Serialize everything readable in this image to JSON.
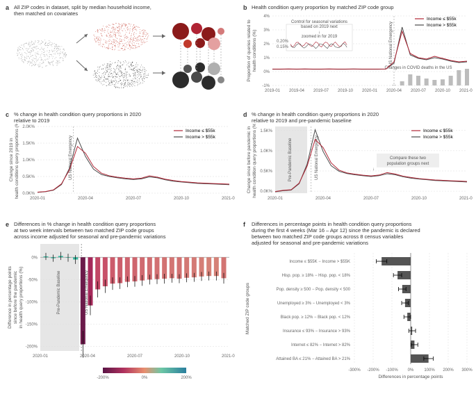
{
  "colors": {
    "low_income": "#b02434",
    "high_income": "#4a4a4a",
    "grid": "#dddddd",
    "baseline_band": "#e6e6e6",
    "bar_fill": "#555555",
    "map_red": "#c0392b",
    "map_dark": "#2c2c2c",
    "map_gray": "#888888"
  },
  "panel_a": {
    "letter": "a",
    "title": "All ZIP codes in dataset, split by median household income,\nthen matched on covariates"
  },
  "panel_b": {
    "letter": "b",
    "title": "Health condition query proportion by matched ZIP code group",
    "ylabel": "Proportion of queries related to\nhealth conditions (%)",
    "legend_low": "Income ≤ $55k",
    "legend_high": "Income > $55k",
    "inset_label": "Control for seasonal variations\nbased on 2019 next",
    "inset_sub": "zoomed in for 2019",
    "inset_ticks": [
      "0.15%",
      "0.20%"
    ],
    "annot_emerg": "US National Emergency",
    "annot_deaths": "Changes in COVID deaths in the US",
    "xticks": [
      "2019-01",
      "2019-04",
      "2019-07",
      "2019-10",
      "2020-01",
      "2020-04",
      "2020-07",
      "2020-10",
      "2021-01"
    ],
    "yticks": [
      "-1%",
      "0%",
      "1%",
      "2%",
      "3%",
      "4%"
    ],
    "series_low": [
      0.18,
      0.18,
      0.19,
      0.18,
      0.19,
      0.18,
      0.18,
      0.19,
      0.18,
      0.18,
      0.19,
      0.18,
      0.18,
      0.18,
      0.19,
      0.7,
      2.9,
      1.3,
      1.0,
      0.9,
      1.1,
      0.95,
      0.8,
      0.7,
      0.75
    ],
    "series_high": [
      0.17,
      0.17,
      0.18,
      0.17,
      0.18,
      0.17,
      0.17,
      0.18,
      0.17,
      0.17,
      0.18,
      0.17,
      0.17,
      0.17,
      0.18,
      0.6,
      3.2,
      1.2,
      0.95,
      0.85,
      1.0,
      0.9,
      0.75,
      0.65,
      0.7
    ],
    "deaths": [
      0,
      0,
      0,
      0,
      0,
      0,
      0,
      0,
      0,
      0,
      0,
      0,
      0,
      0,
      0,
      0.02,
      0.15,
      0.4,
      0.35,
      0.25,
      0.2,
      0.22,
      0.35,
      0.55,
      0.6
    ]
  },
  "panel_c": {
    "letter": "c",
    "title": "% change in health condition query proportions in 2020\nrelative to 2019",
    "ylabel": "Change since 2019 in\nhealth conditions query proportions (%)",
    "annot_emerg": "US National Emergency",
    "xticks": [
      "2020-01",
      "2020-04",
      "2020-07",
      "2020-10",
      "2021-01"
    ],
    "yticks": [
      "0.0K%",
      "0.5K%",
      "1.0K%",
      "1.5K%",
      "2.0K%"
    ],
    "series_low": [
      30,
      50,
      100,
      280,
      700,
      1400,
      1200,
      800,
      600,
      520,
      480,
      450,
      430,
      450,
      520,
      480,
      420,
      380,
      350,
      330,
      310,
      300,
      290,
      280,
      270
    ],
    "series_high": [
      25,
      45,
      90,
      260,
      750,
      1650,
      1100,
      720,
      560,
      500,
      460,
      430,
      410,
      430,
      490,
      460,
      400,
      360,
      335,
      315,
      295,
      285,
      275,
      265,
      255
    ]
  },
  "panel_d": {
    "letter": "d",
    "title": "% change in health condition query proportions in 2020\nrelative to 2019 and pre-pandemic baseline",
    "ylabel": "Change since before pandemic in\nhealth condition query proportions (%)",
    "annot_baseline": "Pre-Pandemic Baseline",
    "annot_emerg": "US National Emergency",
    "annot_compare": "Compare these two\npopulation groups next",
    "xticks": [
      "2020-01",
      "2020-04",
      "2020-07",
      "2020-10",
      "2021-01"
    ],
    "yticks": [
      "0.0K%",
      "0.5K%",
      "1.0K%",
      "1.5K%"
    ],
    "series_low": [
      -10,
      20,
      35,
      200,
      620,
      1280,
      1080,
      700,
      520,
      450,
      420,
      395,
      378,
      398,
      460,
      425,
      372,
      338,
      312,
      294,
      277,
      268,
      258,
      250,
      241
    ],
    "series_high": [
      -15,
      12,
      28,
      185,
      670,
      1520,
      980,
      630,
      490,
      435,
      405,
      382,
      362,
      383,
      432,
      408,
      355,
      322,
      300,
      282,
      264,
      255,
      246,
      237,
      228
    ]
  },
  "panel_e": {
    "letter": "e",
    "title": "Differences in % change in health condition query proportions\nat two week intervals between two matched ZIP code groups\nacross income adjusted for seasonal and pre-pandemic variations",
    "ylabel": "Difference in percentage points\nsince before the pandemic\nin health query proportions (%)",
    "annot_baseline": "Pre-Pandemic Baseline",
    "annot_emerg": "US National Emergency",
    "xticks": [
      "2020-01",
      "2020-04",
      "2020-07",
      "2020-10",
      "2021-01"
    ],
    "yticks": [
      "-200%",
      "-150%",
      "-100%",
      "-50%",
      "0%"
    ],
    "colorbar_ticks": [
      "-200%",
      "0%",
      "200%"
    ],
    "bars": [
      {
        "x": 0,
        "v": 2,
        "err": 8,
        "c": "#34b39a"
      },
      {
        "x": 1,
        "v": -2,
        "err": 8,
        "c": "#34b39a"
      },
      {
        "x": 2,
        "v": 3,
        "err": 9,
        "c": "#3cb8a0"
      },
      {
        "x": 3,
        "v": -1,
        "err": 9,
        "c": "#34b39a"
      },
      {
        "x": 4,
        "v": -5,
        "err": 10,
        "c": "#34b39a"
      },
      {
        "x": 5,
        "v": -195,
        "err": 30,
        "c": "#6b1a4a"
      },
      {
        "x": 6,
        "v": -108,
        "err": 22,
        "c": "#a5285a"
      },
      {
        "x": 7,
        "v": -72,
        "err": 18,
        "c": "#c24766"
      },
      {
        "x": 8,
        "v": -65,
        "err": 15,
        "c": "#c85069"
      },
      {
        "x": 9,
        "v": -59,
        "err": 14,
        "c": "#cc5b6b"
      },
      {
        "x": 10,
        "v": -58,
        "err": 13,
        "c": "#cc5d6b"
      },
      {
        "x": 11,
        "v": -55,
        "err": 12,
        "c": "#cf636e"
      },
      {
        "x": 12,
        "v": -54,
        "err": 12,
        "c": "#cf656e"
      },
      {
        "x": 13,
        "v": -52,
        "err": 12,
        "c": "#d06a70"
      },
      {
        "x": 14,
        "v": -50,
        "err": 11,
        "c": "#d16d71"
      },
      {
        "x": 15,
        "v": -49,
        "err": 11,
        "c": "#d27072"
      },
      {
        "x": 16,
        "v": -48,
        "err": 11,
        "c": "#d27272"
      },
      {
        "x": 17,
        "v": -47,
        "err": 10,
        "c": "#d37573"
      },
      {
        "x": 18,
        "v": -48,
        "err": 10,
        "c": "#d27272"
      },
      {
        "x": 19,
        "v": -46,
        "err": 10,
        "c": "#d37874"
      },
      {
        "x": 20,
        "v": -45,
        "err": 10,
        "c": "#d47a75"
      },
      {
        "x": 21,
        "v": -43,
        "err": 10,
        "c": "#d57e76"
      },
      {
        "x": 22,
        "v": -42,
        "err": 10,
        "c": "#d58177"
      },
      {
        "x": 23,
        "v": -42,
        "err": 10,
        "c": "#d58177"
      },
      {
        "x": 24,
        "v": -47,
        "err": 12,
        "c": "#d37573"
      }
    ]
  },
  "panel_f": {
    "letter": "f",
    "title": "Differences in percentage points in health condition query proportions\nduring the first 4 weeks (Mar 16 – Apr 12) since the pandemic is declared\nbetween two matched ZIP code groups across 8 census variables\nadjusted for seasonal and pre-pandemic variations",
    "ylabel": "Matched ZIP code groups",
    "xlabel": "Differences in percentage points",
    "xticks": [
      "-300%",
      "-200%",
      "-100%",
      "0%",
      "100%",
      "200%",
      "300%"
    ],
    "rows": [
      {
        "label": "Income ≤ $55K − Income > $55K",
        "v": -155,
        "err": 28
      },
      {
        "label": "Hisp. pop. ≥ 18% − Hisp. pop. < 18%",
        "v": -70,
        "err": 22
      },
      {
        "label": "Pop. density ≥ 500 − Pop. density < 500",
        "v": -45,
        "err": 20
      },
      {
        "label": "Unemployed ≥ 3% − Unemployed < 3%",
        "v": -30,
        "err": 18
      },
      {
        "label": "Black pop. ≥ 12% − Black pop. < 12%",
        "v": -18,
        "err": 18
      },
      {
        "label": "Insurance ≤ 93% − Insurance > 93%",
        "v": 8,
        "err": 18
      },
      {
        "label": "Internet ≤ 82% − Internet > 82%",
        "v": 20,
        "err": 18
      },
      {
        "label": "Attained BA ≤ 21% − Attained BA > 21%",
        "v": 95,
        "err": 25
      }
    ]
  }
}
